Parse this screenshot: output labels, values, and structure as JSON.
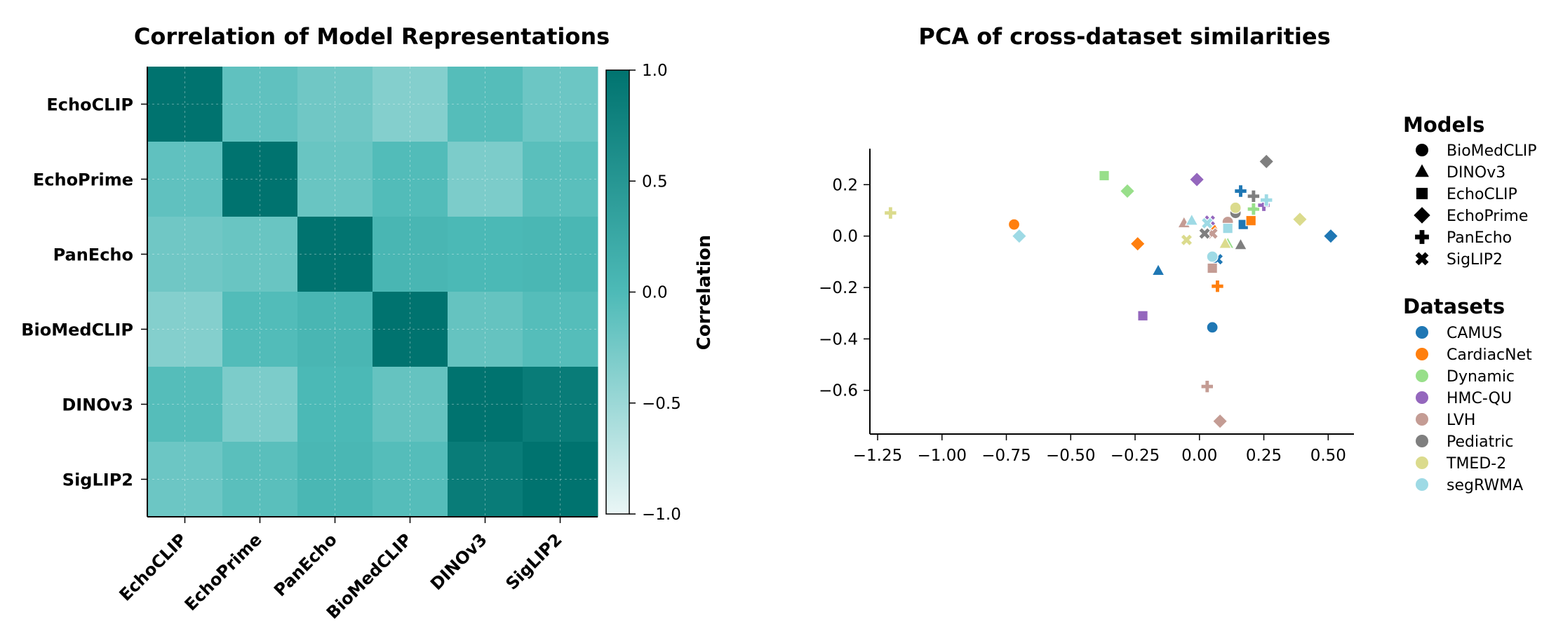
{
  "chart_data": [
    {
      "type": "heatmap",
      "title": "Correlation of Model Representations",
      "rows": [
        "EchoCLIP",
        "EchoPrime",
        "PanEcho",
        "BioMedCLIP",
        "DINOv3",
        "SigLIP2"
      ],
      "cols": [
        "EchoCLIP",
        "EchoPrime",
        "PanEcho",
        "BioMedCLIP",
        "DINOv3",
        "SigLIP2"
      ],
      "values": [
        [
          1.0,
          -0.12,
          -0.22,
          -0.35,
          -0.05,
          -0.2
        ],
        [
          -0.12,
          1.0,
          -0.18,
          -0.03,
          -0.3,
          -0.08
        ],
        [
          -0.22,
          -0.18,
          1.0,
          0.05,
          0.02,
          0.04
        ],
        [
          -0.35,
          -0.03,
          0.05,
          1.0,
          -0.15,
          -0.05
        ],
        [
          -0.05,
          -0.3,
          0.02,
          -0.15,
          1.0,
          0.88
        ],
        [
          -0.2,
          -0.08,
          0.04,
          -0.05,
          0.88,
          1.0
        ]
      ],
      "colorbar": {
        "label": "Correlation",
        "range": [
          -1.0,
          1.0
        ],
        "ticks": [
          "1.0",
          "0.5",
          "0.0",
          "−0.5",
          "−1.0"
        ],
        "tick_values": [
          1.0,
          0.5,
          0.0,
          -0.5,
          -1.0
        ],
        "color_low": "#eaf6f6",
        "color_mid": "#4dbab7",
        "color_high": "#00736f"
      },
      "grid": true
    },
    {
      "type": "scatter",
      "title": "PCA of cross-dataset similarities",
      "xlim": [
        -1.28,
        0.6
      ],
      "ylim": [
        -0.77,
        0.34
      ],
      "xticks": [
        -1.25,
        -1.0,
        -0.75,
        -0.5,
        -0.25,
        0.0,
        0.25,
        0.5
      ],
      "xtick_labels": [
        "−1.25",
        "−1.00",
        "−0.75",
        "−0.50",
        "−0.25",
        "0.00",
        "0.25",
        "0.50"
      ],
      "yticks": [
        0.2,
        0.0,
        -0.2,
        -0.4,
        -0.6
      ],
      "ytick_labels": [
        "0.2",
        "0.0",
        "−0.2",
        "−0.4",
        "−0.6"
      ],
      "legend_models_title": "Models",
      "models": [
        {
          "name": "BioMedCLIP",
          "marker": "circle"
        },
        {
          "name": "DINOv3",
          "marker": "triangle"
        },
        {
          "name": "EchoCLIP",
          "marker": "square"
        },
        {
          "name": "EchoPrime",
          "marker": "diamond"
        },
        {
          "name": "PanEcho",
          "marker": "plus"
        },
        {
          "name": "SigLIP2",
          "marker": "x"
        }
      ],
      "legend_datasets_title": "Datasets",
      "datasets": [
        {
          "name": "CAMUS",
          "color": "#1f77b4"
        },
        {
          "name": "CardiacNet",
          "color": "#ff7f0e"
        },
        {
          "name": "Dynamic",
          "color": "#98df8a"
        },
        {
          "name": "HMC-QU",
          "color": "#9467bd"
        },
        {
          "name": "LVH",
          "color": "#c49c94"
        },
        {
          "name": "Pediatric",
          "color": "#7f7f7f"
        },
        {
          "name": "TMED-2",
          "color": "#dbdb8d"
        },
        {
          "name": "segRWMA",
          "color": "#9edae5"
        }
      ],
      "points": [
        {
          "x": 0.51,
          "y": 0.0,
          "model": "EchoPrime",
          "dataset": "CAMUS"
        },
        {
          "x": 0.05,
          "y": -0.355,
          "model": "BioMedCLIP",
          "dataset": "CAMUS"
        },
        {
          "x": -0.16,
          "y": -0.135,
          "model": "DINOv3",
          "dataset": "CAMUS"
        },
        {
          "x": 0.17,
          "y": 0.045,
          "model": "EchoCLIP",
          "dataset": "CAMUS"
        },
        {
          "x": 0.16,
          "y": 0.175,
          "model": "PanEcho",
          "dataset": "CAMUS"
        },
        {
          "x": 0.07,
          "y": -0.09,
          "model": "SigLIP2",
          "dataset": "CAMUS"
        },
        {
          "x": -0.72,
          "y": 0.045,
          "model": "BioMedCLIP",
          "dataset": "CardiacNet"
        },
        {
          "x": -0.24,
          "y": -0.03,
          "model": "EchoPrime",
          "dataset": "CardiacNet"
        },
        {
          "x": 0.2,
          "y": 0.06,
          "model": "EchoCLIP",
          "dataset": "CardiacNet"
        },
        {
          "x": 0.07,
          "y": -0.195,
          "model": "PanEcho",
          "dataset": "CardiacNet"
        },
        {
          "x": 0.05,
          "y": 0.04,
          "model": "DINOv3",
          "dataset": "CardiacNet"
        },
        {
          "x": -0.37,
          "y": 0.235,
          "model": "EchoCLIP",
          "dataset": "Dynamic"
        },
        {
          "x": -0.28,
          "y": 0.175,
          "model": "EchoPrime",
          "dataset": "Dynamic"
        },
        {
          "x": 0.21,
          "y": 0.105,
          "model": "PanEcho",
          "dataset": "Dynamic"
        },
        {
          "x": 0.11,
          "y": -0.03,
          "model": "DINOv3",
          "dataset": "Dynamic"
        },
        {
          "x": -0.01,
          "y": 0.22,
          "model": "EchoPrime",
          "dataset": "HMC-QU"
        },
        {
          "x": -0.22,
          "y": -0.31,
          "model": "EchoCLIP",
          "dataset": "HMC-QU"
        },
        {
          "x": 0.25,
          "y": 0.12,
          "model": "PanEcho",
          "dataset": "HMC-QU"
        },
        {
          "x": 0.04,
          "y": 0.06,
          "model": "SigLIP2",
          "dataset": "HMC-QU"
        },
        {
          "x": 0.08,
          "y": -0.72,
          "model": "EchoPrime",
          "dataset": "LVH"
        },
        {
          "x": 0.03,
          "y": -0.585,
          "model": "PanEcho",
          "dataset": "LVH"
        },
        {
          "x": 0.05,
          "y": -0.125,
          "model": "EchoCLIP",
          "dataset": "LVH"
        },
        {
          "x": 0.11,
          "y": 0.055,
          "model": "BioMedCLIP",
          "dataset": "LVH"
        },
        {
          "x": -0.06,
          "y": 0.05,
          "model": "DINOv3",
          "dataset": "LVH"
        },
        {
          "x": 0.05,
          "y": 0.01,
          "model": "SigLIP2",
          "dataset": "LVH"
        },
        {
          "x": 0.26,
          "y": 0.29,
          "model": "EchoPrime",
          "dataset": "Pediatric"
        },
        {
          "x": 0.21,
          "y": 0.155,
          "model": "PanEcho",
          "dataset": "Pediatric"
        },
        {
          "x": 0.14,
          "y": 0.09,
          "model": "BioMedCLIP",
          "dataset": "Pediatric"
        },
        {
          "x": 0.16,
          "y": -0.035,
          "model": "DINOv3",
          "dataset": "Pediatric"
        },
        {
          "x": 0.02,
          "y": 0.01,
          "model": "SigLIP2",
          "dataset": "Pediatric"
        },
        {
          "x": -1.2,
          "y": 0.09,
          "model": "PanEcho",
          "dataset": "TMED-2"
        },
        {
          "x": 0.39,
          "y": 0.065,
          "model": "EchoPrime",
          "dataset": "TMED-2"
        },
        {
          "x": 0.14,
          "y": 0.11,
          "model": "BioMedCLIP",
          "dataset": "TMED-2"
        },
        {
          "x": -0.05,
          "y": -0.015,
          "model": "SigLIP2",
          "dataset": "TMED-2"
        },
        {
          "x": 0.1,
          "y": -0.03,
          "model": "DINOv3",
          "dataset": "TMED-2"
        },
        {
          "x": -0.7,
          "y": 0.0,
          "model": "EchoPrime",
          "dataset": "segRWMA"
        },
        {
          "x": 0.26,
          "y": 0.14,
          "model": "PanEcho",
          "dataset": "segRWMA"
        },
        {
          "x": 0.11,
          "y": 0.03,
          "model": "EchoCLIP",
          "dataset": "segRWMA"
        },
        {
          "x": 0.05,
          "y": -0.08,
          "model": "BioMedCLIP",
          "dataset": "segRWMA"
        },
        {
          "x": -0.03,
          "y": 0.06,
          "model": "DINOv3",
          "dataset": "segRWMA"
        },
        {
          "x": 0.03,
          "y": 0.05,
          "model": "SigLIP2",
          "dataset": "segRWMA"
        }
      ]
    }
  ]
}
